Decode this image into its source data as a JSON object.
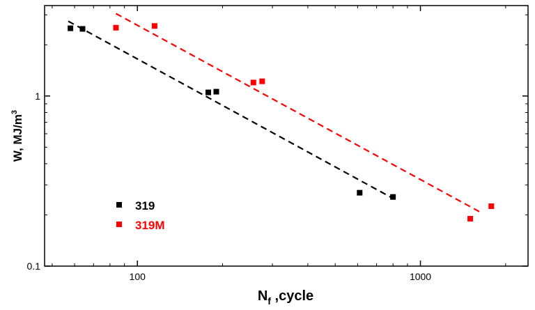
{
  "chart_data": {
    "type": "scatter",
    "x_scale": "log",
    "y_scale": "log",
    "xlim": [
      47,
      2400
    ],
    "ylim": [
      0.1,
      3.4
    ],
    "xlabel_main": "N",
    "xlabel_sub": "f",
    "xlabel_rest": " ,cycle",
    "ylabel": "W, MJ/m",
    "ylabel_sup": "3",
    "x_ticks": [
      {
        "value": 100,
        "label": "100"
      },
      {
        "value": 1000,
        "label": "1000"
      }
    ],
    "y_ticks": [
      {
        "value": 0.1,
        "label": "0.1"
      },
      {
        "value": 1,
        "label": "1"
      }
    ],
    "legend_position": "bottom-left",
    "series": [
      {
        "name": "319",
        "color": "#000000",
        "points": [
          {
            "x": 58,
            "y": 2.5
          },
          {
            "x": 64,
            "y": 2.48
          },
          {
            "x": 178,
            "y": 1.05
          },
          {
            "x": 190,
            "y": 1.06
          },
          {
            "x": 610,
            "y": 0.27
          },
          {
            "x": 800,
            "y": 0.255
          }
        ],
        "fit": {
          "x": [
            57,
            800
          ],
          "y": [
            2.75,
            0.25
          ]
        }
      },
      {
        "name": "319M",
        "color": "#ff0000",
        "points": [
          {
            "x": 84,
            "y": 2.52
          },
          {
            "x": 115,
            "y": 2.58
          },
          {
            "x": 257,
            "y": 1.2
          },
          {
            "x": 276,
            "y": 1.22
          },
          {
            "x": 1500,
            "y": 0.19
          },
          {
            "x": 1780,
            "y": 0.225
          }
        ],
        "fit": {
          "x": [
            84,
            1650
          ],
          "y": [
            3.05,
            0.205
          ]
        }
      }
    ]
  }
}
